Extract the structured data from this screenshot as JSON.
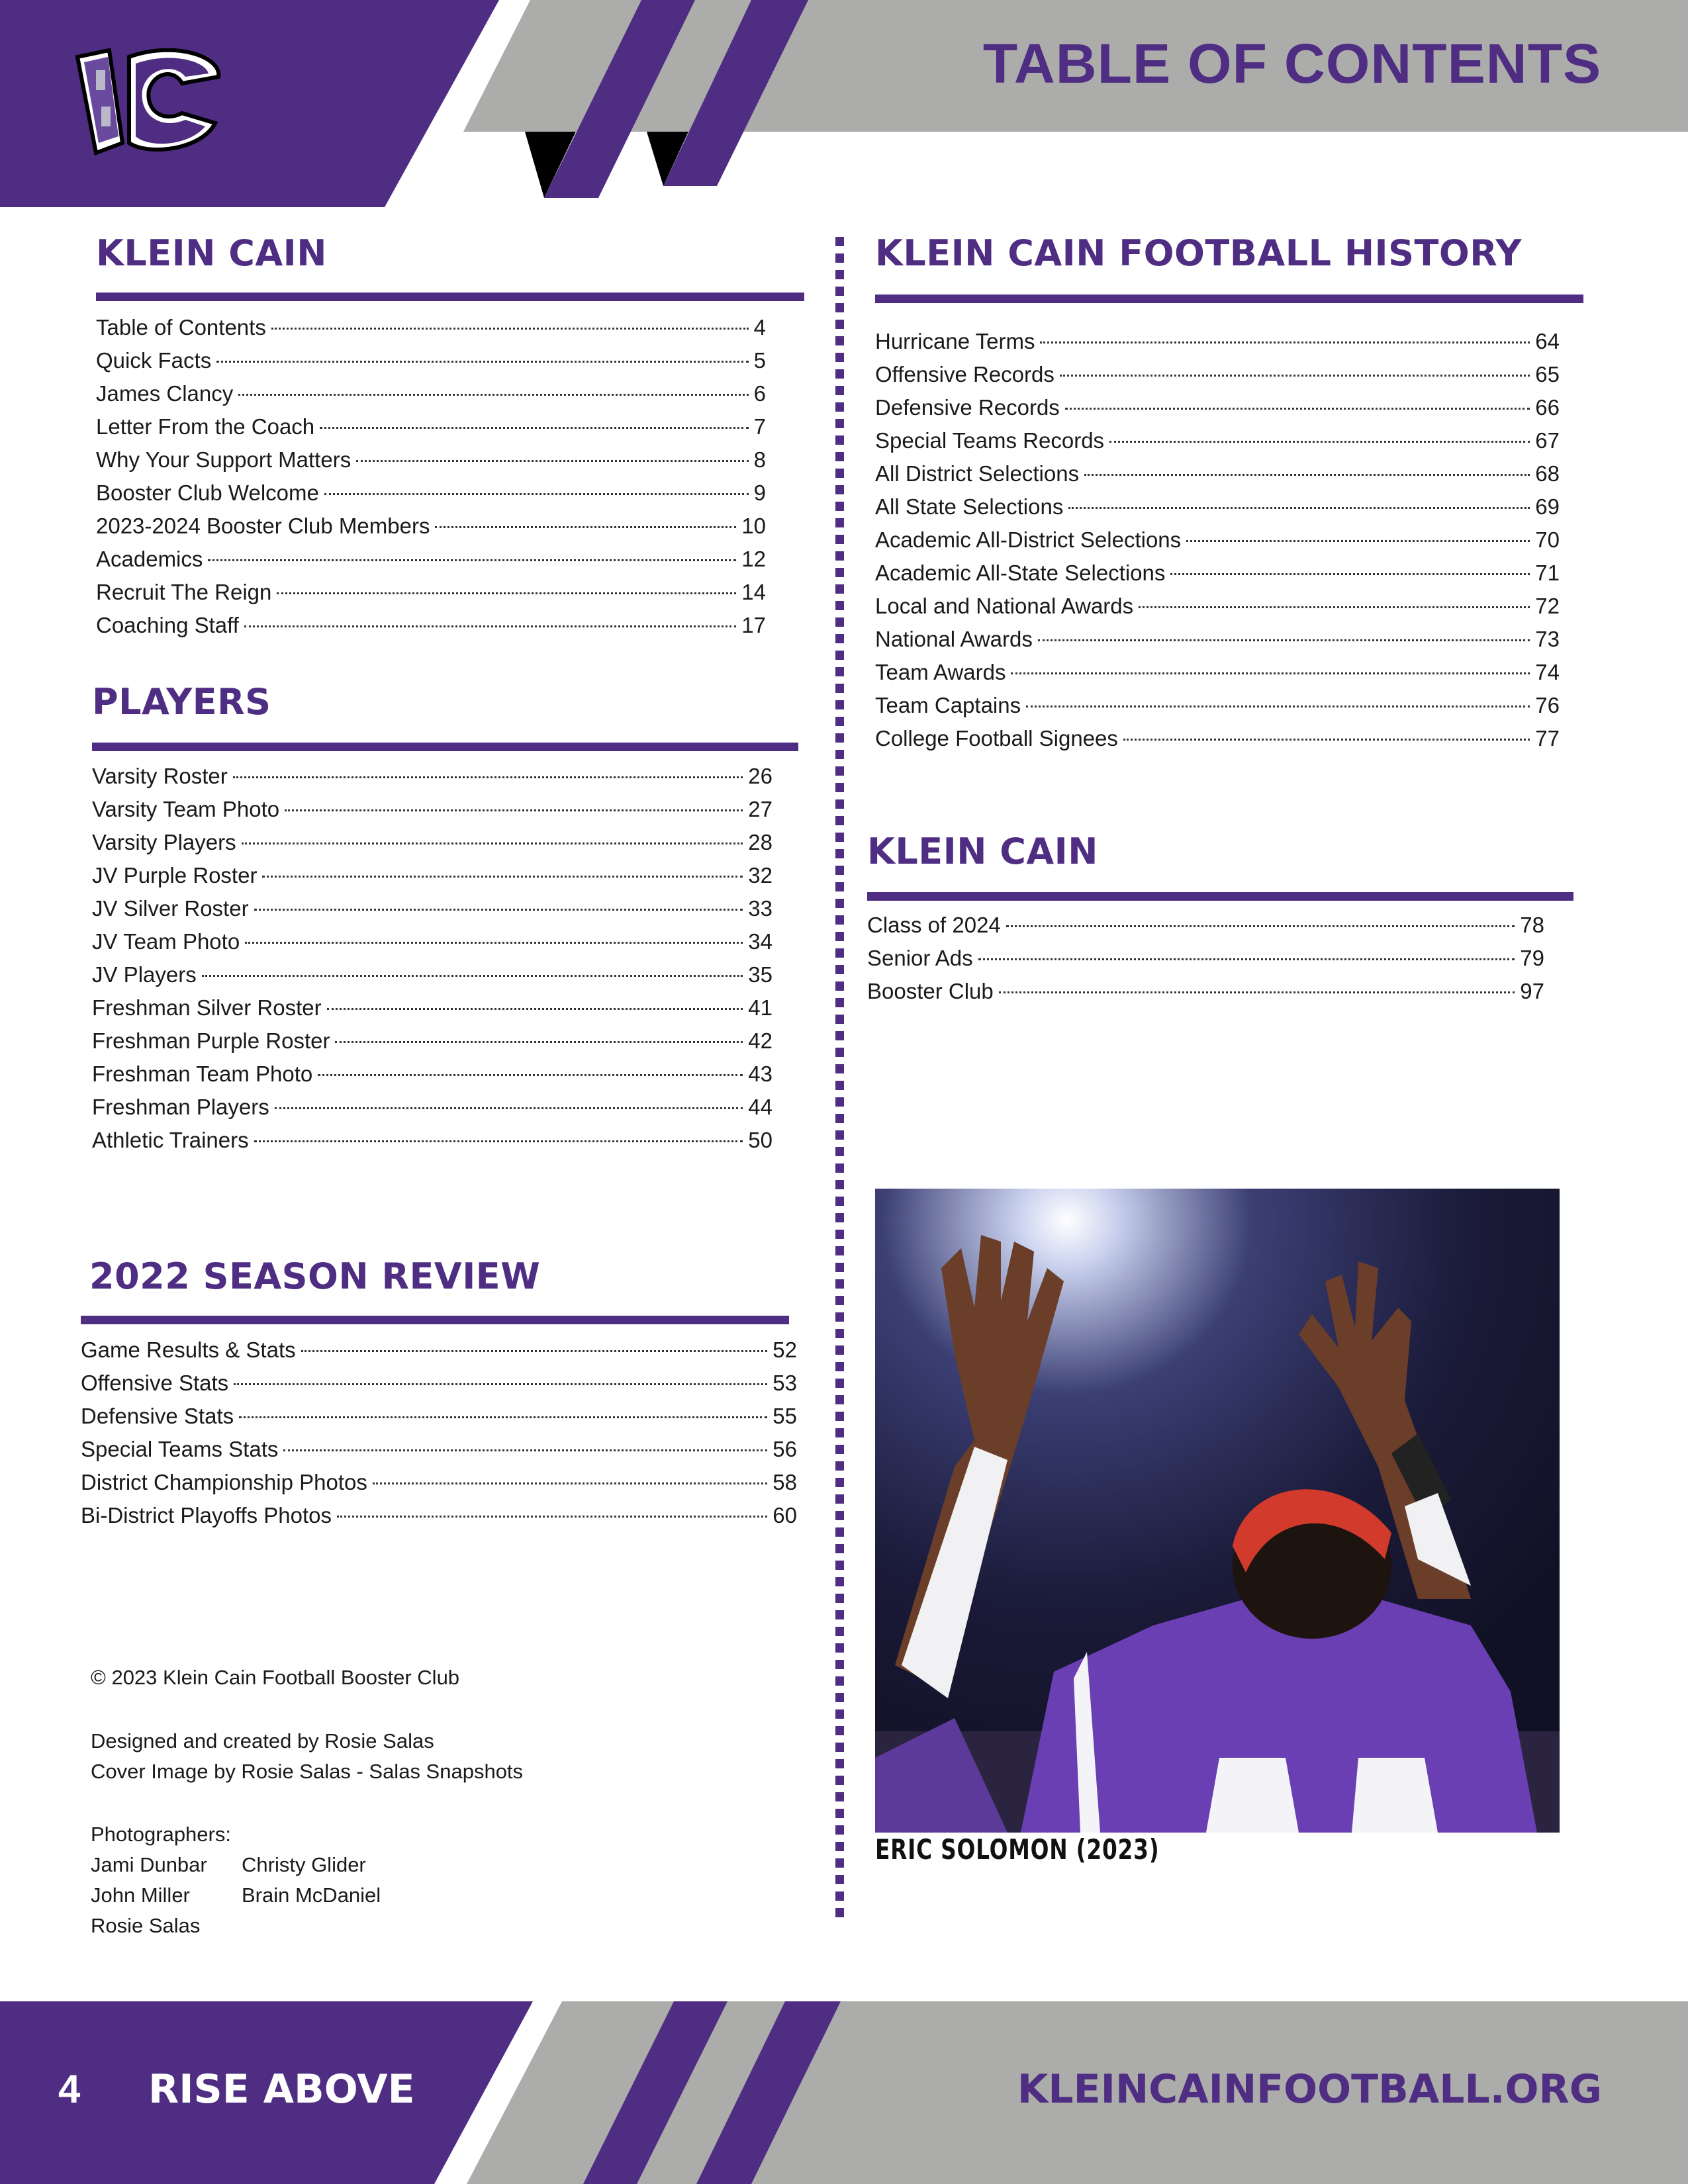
{
  "colors": {
    "brand_purple": "#4e2d82",
    "band_gray": "#acadaa",
    "text": "#1a1a1a"
  },
  "header": {
    "title": "TABLE OF CONTENTS",
    "logo": "Klein Cain KC flag logo"
  },
  "left": {
    "klein_cain": {
      "heading": "KLEIN CAIN",
      "entries": [
        {
          "label": "Table of Contents",
          "page": "4"
        },
        {
          "label": "Quick Facts",
          "page": "5"
        },
        {
          "label": "James Clancy",
          "page": "6"
        },
        {
          "label": "Letter From the Coach",
          "page": "7"
        },
        {
          "label": "Why Your Support Matters",
          "page": "8"
        },
        {
          "label": "Booster Club Welcome",
          "page": "9"
        },
        {
          "label": "2023-2024 Booster Club Members",
          "page": "10"
        },
        {
          "label": "Academics",
          "page": "12"
        },
        {
          "label": "Recruit The Reign",
          "page": "14"
        },
        {
          "label": "Coaching Staff",
          "page": "17"
        }
      ]
    },
    "players": {
      "heading": "PLAYERS",
      "entries": [
        {
          "label": "Varsity Roster",
          "page": "26"
        },
        {
          "label": "Varsity Team Photo",
          "page": "27"
        },
        {
          "label": "Varsity Players",
          "page": "28"
        },
        {
          "label": "JV Purple Roster",
          "page": "32"
        },
        {
          "label": "JV Silver Roster",
          "page": "33"
        },
        {
          "label": "JV Team Photo",
          "page": "34"
        },
        {
          "label": "JV Players",
          "page": "35"
        },
        {
          "label": "Freshman Silver Roster",
          "page": "41"
        },
        {
          "label": "Freshman Purple Roster",
          "page": "42"
        },
        {
          "label": "Freshman Team Photo",
          "page": "43"
        },
        {
          "label": "Freshman Players",
          "page": "44"
        },
        {
          "label": "Athletic Trainers",
          "page": "50"
        }
      ]
    },
    "season_review": {
      "heading": "2022 SEASON REVIEW",
      "entries": [
        {
          "label": "Game Results & Stats",
          "page": "52"
        },
        {
          "label": "Offensive Stats",
          "page": "53"
        },
        {
          "label": "Defensive Stats",
          "page": "55"
        },
        {
          "label": "Special Teams Stats",
          "page": "56"
        },
        {
          "label": "District Championship Photos",
          "page": "58"
        },
        {
          "label": "Bi-District Playoffs Photos",
          "page": "60"
        }
      ]
    },
    "credits": {
      "copyright": "© 2023 Klein Cain Football Booster Club",
      "designed": "Designed and created by Rosie Salas",
      "cover": "Cover Image by Rosie Salas - Salas Snapshots",
      "photographers_label": "Photographers:",
      "photographers": [
        "Jami Dunbar",
        "Christy Glider",
        "John Miller",
        "Brain McDaniel",
        "Rosie Salas"
      ]
    }
  },
  "right": {
    "history": {
      "heading": "KLEIN CAIN FOOTBALL HISTORY",
      "entries": [
        {
          "label": "Hurricane Terms",
          "page": "64"
        },
        {
          "label": "Offensive Records",
          "page": "65"
        },
        {
          "label": "Defensive Records",
          "page": "66"
        },
        {
          "label": "Special Teams Records",
          "page": "67"
        },
        {
          "label": "All District Selections",
          "page": "68"
        },
        {
          "label": "All State Selections",
          "page": "69"
        },
        {
          "label": "Academic All-District Selections",
          "page": "70"
        },
        {
          "label": "Academic All-State Selections",
          "page": "71"
        },
        {
          "label": "Local and National Awards",
          "page": "72"
        },
        {
          "label": "National Awards",
          "page": "73"
        },
        {
          "label": "Team Awards",
          "page": "74"
        },
        {
          "label": "Team Captains",
          "page": "76"
        },
        {
          "label": "College Football Signees",
          "page": "77"
        }
      ]
    },
    "klein_cain": {
      "heading": "KLEIN CAIN",
      "entries": [
        {
          "label": "Class of 2024",
          "page": "78"
        },
        {
          "label": "Senior Ads",
          "page": "79"
        },
        {
          "label": "Booster Club",
          "page": "97"
        }
      ]
    },
    "photo_caption": "ERIC SOLOMON (2023)"
  },
  "footer": {
    "page_number": "4",
    "slogan": "RISE ABOVE",
    "url": "KLEINCAINFOOTBALL.ORG"
  }
}
